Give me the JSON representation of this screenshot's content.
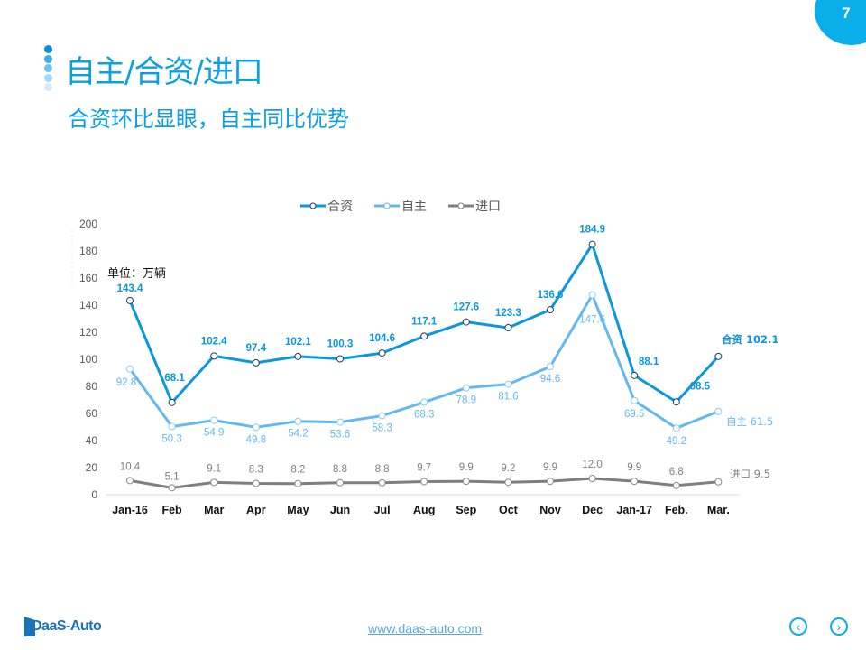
{
  "page": {
    "number": "7",
    "badge_color": "#0aaee8"
  },
  "header": {
    "title": "自主/合资/进口",
    "subtitle": "合资环比显眼，自主同比优势",
    "dot_colors": [
      "#0a8fe0",
      "#3aa9ee",
      "#6cc0f3",
      "#a4d8f8",
      "#d5e9f6"
    ]
  },
  "chart_data": {
    "type": "line",
    "title": "",
    "unit_label": "单位：万辆",
    "xlabel": "",
    "ylabel": "",
    "ylim": [
      0,
      200
    ],
    "yticks": [
      0,
      20,
      40,
      60,
      80,
      100,
      120,
      140,
      160,
      180,
      200
    ],
    "grid": false,
    "legend_position": "top",
    "categories": [
      "Jan-16",
      "Feb",
      "Mar",
      "Apr",
      "May",
      "Jun",
      "Jul",
      "Aug",
      "Sep",
      "Oct",
      "Nov",
      "Dec",
      "Jan-17",
      "Feb.",
      "Mar."
    ],
    "series": [
      {
        "name": "合资",
        "color": "#0a97e0",
        "end_label": "合资 102.1",
        "values": [
          143.4,
          68.1,
          102.4,
          97.4,
          102.1,
          100.3,
          104.6,
          117.1,
          127.6,
          123.3,
          136.6,
          184.9,
          88.1,
          68.5,
          102.1
        ]
      },
      {
        "name": "自主",
        "color": "#64b8f2",
        "end_label": "自主 61.5",
        "values": [
          92.8,
          50.3,
          54.9,
          49.8,
          54.2,
          53.6,
          58.3,
          68.3,
          78.9,
          81.6,
          94.6,
          147.6,
          69.5,
          49.2,
          61.5
        ]
      },
      {
        "name": "进口",
        "color": "#7f7f7f",
        "end_label": "进口 9.5",
        "values": [
          10.4,
          5.1,
          9.1,
          8.3,
          8.2,
          8.8,
          8.8,
          9.7,
          9.9,
          9.2,
          9.9,
          12.0,
          9.9,
          6.8,
          9.5
        ]
      }
    ]
  },
  "footer": {
    "logo_text": "DaaS-Auto",
    "url": "www.daas-auto.com",
    "prev_icon": "‹",
    "next_icon": "›"
  }
}
